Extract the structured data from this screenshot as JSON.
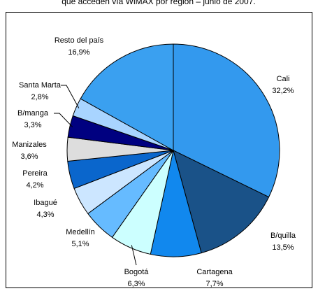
{
  "chart_data": {
    "type": "pie",
    "title": "que acceden vía WiMAX por región – junio de 2007.",
    "categories": [
      "Cali",
      "B/quilla",
      "Cartagena",
      "Bogotá",
      "Medellín",
      "Ibagué",
      "Pereira",
      "Manizales",
      "B/manga",
      "Santa Marta",
      "Resto del país"
    ],
    "values": [
      32.2,
      13.5,
      7.7,
      6.3,
      5.1,
      4.3,
      4.2,
      3.6,
      3.3,
      2.8,
      16.9
    ],
    "value_labels": [
      "32,2%",
      "13,5%",
      "7,7%",
      "6,3%",
      "5,1%",
      "4,3%",
      "4,2%",
      "3,6%",
      "3,3%",
      "2,8%",
      "16,9%"
    ],
    "colors": [
      "#3399ee",
      "#1a5288",
      "#1188ee",
      "#ccffff",
      "#66bbff",
      "#cce6ff",
      "#0a66cc",
      "#dddddd",
      "#000080",
      "#a8d4ff",
      "#3aa0f0"
    ]
  }
}
